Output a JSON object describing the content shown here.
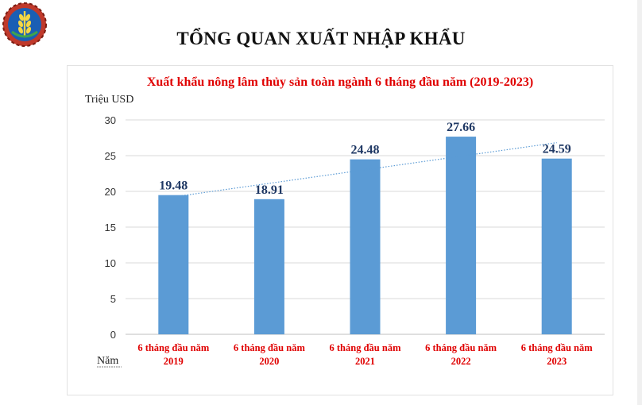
{
  "slide": {
    "title": "TỔNG QUAN XUẤT NHẬP KHẨU"
  },
  "chart_data": {
    "type": "bar",
    "title": "Xuất khẩu nông lâm thủy sản toàn ngành 6 tháng đầu năm (2019-2023)",
    "ylabel": "Triệu USD",
    "xlabel": "Năm",
    "categories": [
      [
        "6 tháng đầu năm",
        "2019"
      ],
      [
        "6 tháng đầu năm",
        "2020"
      ],
      [
        "6 tháng đầu năm",
        "2021"
      ],
      [
        "6 tháng đầu năm",
        "2022"
      ],
      [
        "6 tháng đầu năm",
        "2023"
      ]
    ],
    "values": [
      19.48,
      18.91,
      24.48,
      27.66,
      24.59
    ],
    "data_labels": [
      "19.48",
      "18.91",
      "24.48",
      "27.66",
      "24.59"
    ],
    "ylim": [
      0,
      30
    ],
    "yticks": [
      "0",
      "5",
      "10",
      "15",
      "20",
      "25",
      "30"
    ],
    "grid": true,
    "trendline": {
      "type": "linear",
      "style": "dotted"
    },
    "colors": {
      "bar": "#5b9bd5",
      "title": "#e00000",
      "category_label": "#e00000",
      "data_label": "#1f3864",
      "trendline": "#5b9bd5",
      "gridline": "#d9d9d9"
    }
  }
}
